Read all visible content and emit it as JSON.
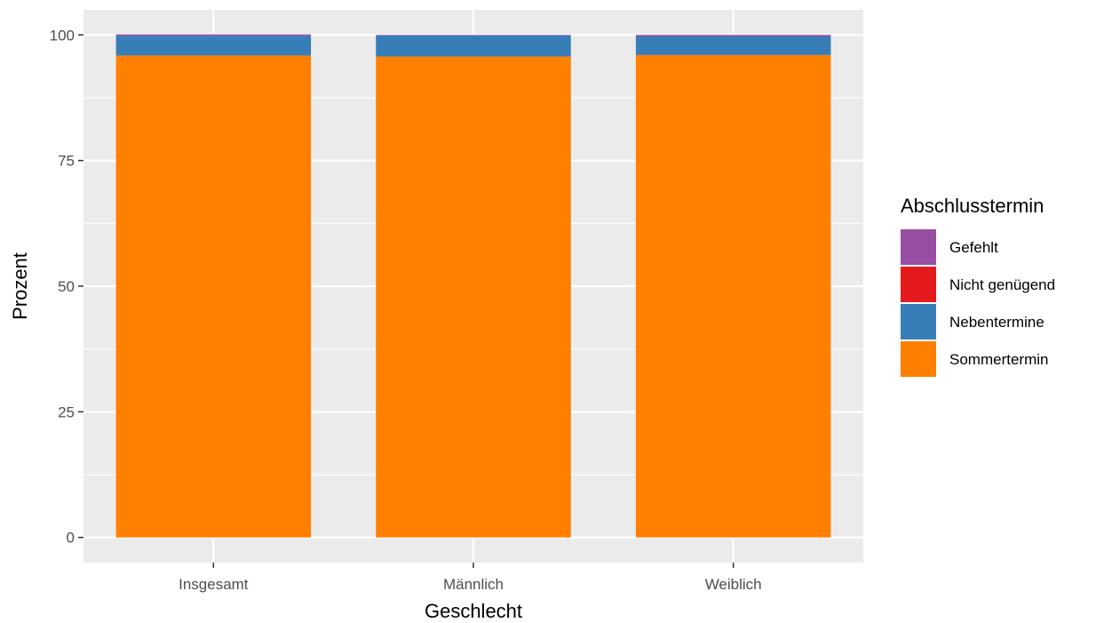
{
  "chart_data": {
    "type": "bar",
    "stacked": true,
    "categories": [
      "Insgesamt",
      "Männlich",
      "Weiblich"
    ],
    "series": [
      {
        "name": "Sommertermin",
        "color": "#FF7F00",
        "values": [
          95.9,
          95.7,
          96.0
        ]
      },
      {
        "name": "Nebentermine",
        "color": "#377EB8",
        "values": [
          3.9,
          4.2,
          3.7
        ]
      },
      {
        "name": "Nicht genügend",
        "color": "#E41A1C",
        "values": [
          0.0,
          0.0,
          0.0
        ]
      },
      {
        "name": "Gefehlt",
        "color": "#984EA3",
        "values": [
          0.3,
          0.1,
          0.3
        ]
      }
    ],
    "title": "",
    "xlabel": "Geschlecht",
    "ylabel": "Prozent",
    "ylim": [
      -5,
      105
    ],
    "yticks": [
      0,
      25,
      50,
      75,
      100
    ],
    "grid": true,
    "legend": {
      "title": "Abschlusstermin",
      "position": "right",
      "entries": [
        "Gefehlt",
        "Nicht genügend",
        "Nebentermine",
        "Sommertermin"
      ]
    }
  }
}
